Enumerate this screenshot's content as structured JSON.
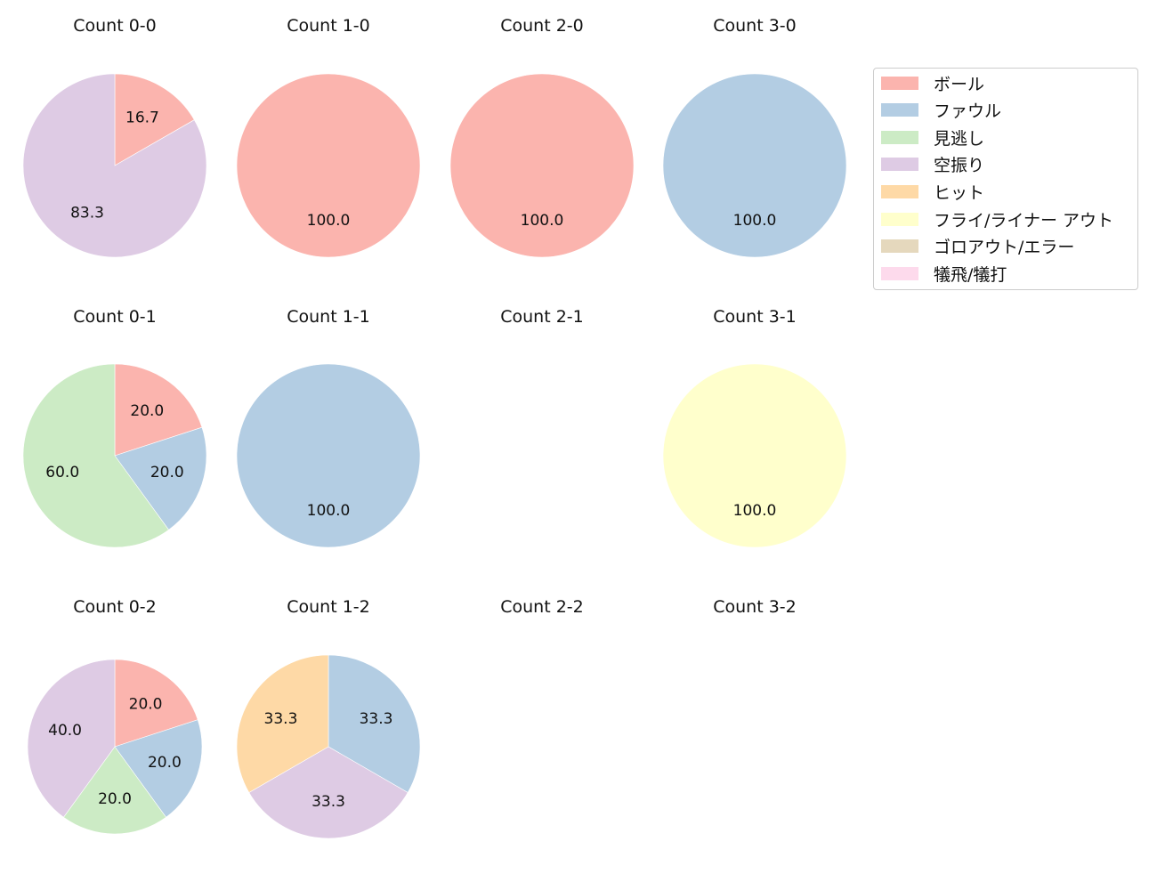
{
  "chart_data": {
    "type": "pie",
    "title": "",
    "legend": {
      "position": "upper right",
      "entries": [
        {
          "label": "ボール",
          "color": "#fbb4ae"
        },
        {
          "label": "ファウル",
          "color": "#b3cde3"
        },
        {
          "label": "見逃し",
          "color": "#ccebc5"
        },
        {
          "label": "空振り",
          "color": "#decbe4"
        },
        {
          "label": "ヒット",
          "color": "#fed9a6"
        },
        {
          "label": "フライ/ライナー アウト",
          "color": "#ffffcc"
        },
        {
          "label": "ゴロアウト/エラー",
          "color": "#e5d8bd"
        },
        {
          "label": "犠飛/犠打",
          "color": "#fddaec"
        }
      ]
    },
    "subplots": [
      {
        "title": "Count 0-0",
        "slices": [
          {
            "label": "ボール",
            "value": 16.7
          },
          {
            "label": "空振り",
            "value": 83.3
          }
        ]
      },
      {
        "title": "Count 1-0",
        "slices": [
          {
            "label": "ボール",
            "value": 100.0
          }
        ]
      },
      {
        "title": "Count 2-0",
        "slices": [
          {
            "label": "ボール",
            "value": 100.0
          }
        ]
      },
      {
        "title": "Count 3-0",
        "slices": [
          {
            "label": "ファウル",
            "value": 100.0
          }
        ]
      },
      {
        "title": "Count 0-1",
        "slices": [
          {
            "label": "ボール",
            "value": 20.0
          },
          {
            "label": "ファウル",
            "value": 20.0
          },
          {
            "label": "見逃し",
            "value": 60.0
          }
        ]
      },
      {
        "title": "Count 1-1",
        "slices": [
          {
            "label": "ファウル",
            "value": 100.0
          }
        ]
      },
      {
        "title": "Count 2-1",
        "slices": []
      },
      {
        "title": "Count 3-1",
        "slices": [
          {
            "label": "フライ/ライナー アウト",
            "value": 100.0
          }
        ]
      },
      {
        "title": "Count 0-2",
        "slices": [
          {
            "label": "ボール",
            "value": 20.0
          },
          {
            "label": "ファウル",
            "value": 20.0
          },
          {
            "label": "見逃し",
            "value": 20.0
          },
          {
            "label": "空振り",
            "value": 40.0
          }
        ]
      },
      {
        "title": "Count 1-2",
        "slices": [
          {
            "label": "ファウル",
            "value": 33.3
          },
          {
            "label": "空振り",
            "value": 33.3
          },
          {
            "label": "ヒット",
            "value": 33.3
          }
        ]
      },
      {
        "title": "Count 2-2",
        "slices": []
      },
      {
        "title": "Count 3-2",
        "slices": []
      }
    ]
  }
}
